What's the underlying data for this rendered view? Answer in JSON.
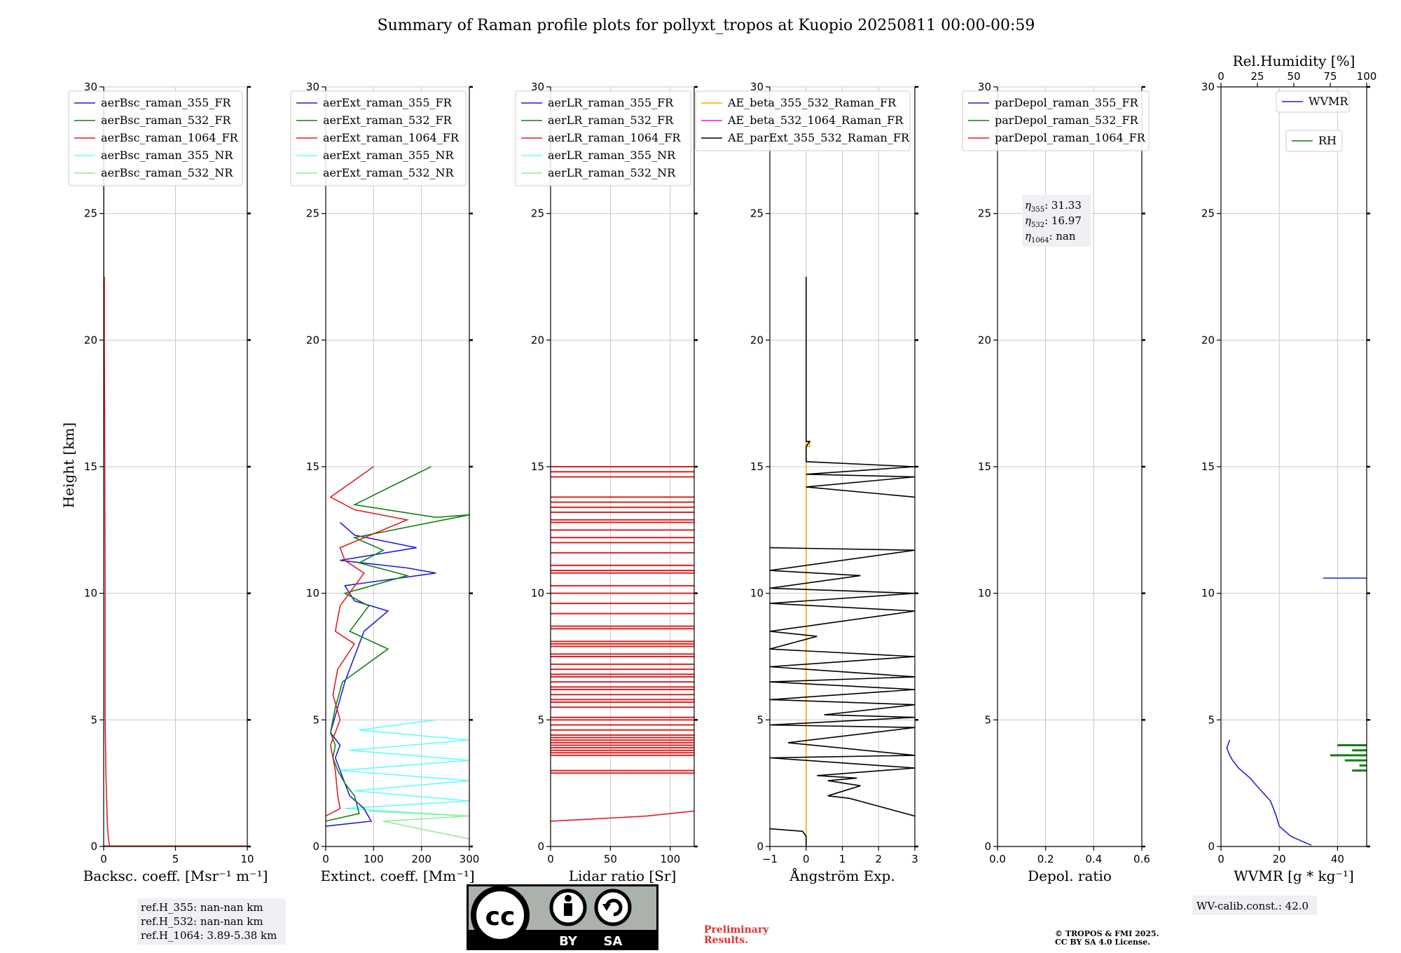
{
  "title": "Summary of Raman profile plots for pollyxt_tropos at Kuopio 20250811 00:00-00:59",
  "y_label": "Height [km]",
  "y_ticks": [
    "0",
    "5",
    "10",
    "15",
    "20",
    "25",
    "30"
  ],
  "chart_data": [
    {
      "type": "line",
      "id": "bsc",
      "xlabel": "Backsc. coeff. [Msr⁻¹ m⁻¹]",
      "xlim": [
        0,
        10
      ],
      "ylim": [
        0,
        30
      ],
      "xticks": [
        0,
        5,
        10
      ],
      "xtick_labels": [
        "0",
        "5",
        "10"
      ],
      "legend": [
        {
          "name": "aerBsc_raman_355_FR",
          "color": "#1f1fd6"
        },
        {
          "name": "aerBsc_raman_532_FR",
          "color": "#118011"
        },
        {
          "name": "aerBsc_raman_1064_FR",
          "color": "#e02020"
        },
        {
          "name": "aerBsc_raman_355_NR",
          "color": "#60ffff"
        },
        {
          "name": "aerBsc_raman_532_NR",
          "color": "#90ee90"
        }
      ],
      "series": [
        {
          "name": "aerBsc_raman_1064_FR",
          "color": "#e02020",
          "points": [
            [
              0.4,
              0.02
            ],
            [
              0.3,
              0.5
            ],
            [
              0.25,
              1.0
            ],
            [
              0.2,
              2.0
            ],
            [
              0.15,
              3.0
            ],
            [
              0.1,
              5.0
            ],
            [
              0.1,
              10.0
            ],
            [
              0.08,
              15.0
            ],
            [
              0.05,
              20.0
            ],
            [
              0.05,
              22.5
            ]
          ]
        },
        {
          "name": "baseline",
          "color": "#e02020",
          "points": [
            [
              0,
              0.02
            ],
            [
              10,
              0.02
            ]
          ]
        },
        {
          "name": "aerBsc_raman_355_FR",
          "color": "#b0b0b0",
          "points": [
            [
              0.02,
              22.5
            ],
            [
              0.02,
              30
            ]
          ]
        }
      ]
    },
    {
      "type": "line",
      "id": "ext",
      "xlabel": "Extinct. coeff. [Mm⁻¹]",
      "xlim": [
        0,
        300
      ],
      "ylim": [
        0,
        30
      ],
      "xticks": [
        0,
        100,
        200,
        300
      ],
      "xtick_labels": [
        "0",
        "100",
        "200",
        "300"
      ],
      "legend": [
        {
          "name": "aerExt_raman_355_FR",
          "color": "#1f1fd6"
        },
        {
          "name": "aerExt_raman_532_FR",
          "color": "#118011"
        },
        {
          "name": "aerExt_raman_1064_FR",
          "color": "#e02020"
        },
        {
          "name": "aerExt_raman_355_NR",
          "color": "#60ffff"
        },
        {
          "name": "aerExt_raman_532_NR",
          "color": "#90ee90"
        }
      ],
      "series": [
        {
          "name": "aerExt_raman_355_NR",
          "color": "#60ffff",
          "points": [
            [
              300,
              1.2
            ],
            [
              40,
              1.5
            ],
            [
              300,
              1.8
            ],
            [
              60,
              2.2
            ],
            [
              300,
              2.6
            ],
            [
              30,
              3.0
            ],
            [
              300,
              3.4
            ],
            [
              50,
              3.8
            ],
            [
              300,
              4.2
            ],
            [
              70,
              4.6
            ],
            [
              230,
              5.0
            ]
          ]
        },
        {
          "name": "aerExt_raman_532_NR",
          "color": "#90ee90",
          "points": [
            [
              300,
              0.3
            ],
            [
              120,
              1.0
            ],
            [
              300,
              1.2
            ],
            [
              90,
              1.4
            ]
          ]
        },
        {
          "name": "aerExt_raman_355_FR",
          "color": "#1f1fd6",
          "points": [
            [
              0,
              0.8
            ],
            [
              95,
              1.0
            ],
            [
              80,
              1.5
            ],
            [
              50,
              2.0
            ],
            [
              40,
              2.5
            ],
            [
              30,
              3.0
            ],
            [
              20,
              3.5
            ],
            [
              30,
              4.0
            ],
            [
              10,
              4.5
            ],
            [
              25,
              5.5
            ],
            [
              40,
              6.5
            ],
            [
              60,
              7.5
            ],
            [
              80,
              8.5
            ],
            [
              130,
              9.3
            ],
            [
              60,
              9.7
            ],
            [
              40,
              10.3
            ],
            [
              230,
              10.8
            ],
            [
              170,
              11.0
            ],
            [
              30,
              11.3
            ],
            [
              190,
              11.8
            ],
            [
              60,
              12.3
            ],
            [
              30,
              12.8
            ]
          ]
        },
        {
          "name": "aerExt_raman_532_FR",
          "color": "#118011",
          "points": [
            [
              0,
              1.0
            ],
            [
              70,
              1.3
            ],
            [
              60,
              2.0
            ],
            [
              40,
              2.5
            ],
            [
              25,
              3.0
            ],
            [
              15,
              3.5
            ],
            [
              20,
              4.0
            ],
            [
              10,
              4.5
            ],
            [
              20,
              5.5
            ],
            [
              35,
              6.5
            ],
            [
              130,
              7.8
            ],
            [
              50,
              8.5
            ],
            [
              90,
              9.5
            ],
            [
              40,
              10.0
            ],
            [
              170,
              10.7
            ],
            [
              70,
              11.2
            ],
            [
              120,
              11.7
            ],
            [
              60,
              12.2
            ],
            [
              300,
              13.1
            ],
            [
              230,
              13.0
            ],
            [
              60,
              13.5
            ],
            [
              220,
              15.0
            ]
          ]
        },
        {
          "name": "aerExt_raman_1064_FR",
          "color": "#e02020",
          "points": [
            [
              0,
              1.2
            ],
            [
              30,
              1.5
            ],
            [
              25,
              2.0
            ],
            [
              20,
              3.0
            ],
            [
              10,
              4.0
            ],
            [
              30,
              5.0
            ],
            [
              15,
              6.0
            ],
            [
              25,
              7.0
            ],
            [
              60,
              8.0
            ],
            [
              20,
              8.5
            ],
            [
              30,
              9.5
            ],
            [
              80,
              10.8
            ],
            [
              40,
              11.3
            ],
            [
              30,
              11.8
            ],
            [
              170,
              12.9
            ],
            [
              60,
              13.3
            ],
            [
              10,
              13.8
            ],
            [
              100,
              15.0
            ]
          ]
        }
      ]
    },
    {
      "type": "line",
      "id": "lr",
      "xlabel": "Lidar ratio [Sr]",
      "xlim": [
        0,
        120
      ],
      "ylim": [
        0,
        30
      ],
      "xticks": [
        0,
        50,
        100
      ],
      "xtick_labels": [
        "0",
        "50",
        "100"
      ],
      "legend": [
        {
          "name": "aerLR_raman_355_FR",
          "color": "#1f1fd6"
        },
        {
          "name": "aerLR_raman_532_FR",
          "color": "#118011"
        },
        {
          "name": "aerLR_raman_1064_FR",
          "color": "#e02020"
        },
        {
          "name": "aerLR_raman_355_NR",
          "color": "#60ffff"
        },
        {
          "name": "aerLR_raman_532_NR",
          "color": "#90ee90"
        }
      ],
      "series": [
        {
          "name": "aerLR_raman_1064_FR",
          "color": "#e02020",
          "points": [
            [
              0,
              1.0
            ],
            [
              40,
              1.1
            ],
            [
              80,
              1.2
            ],
            [
              120,
              1.4
            ]
          ]
        }
      ],
      "hlines_1064": [
        2.9,
        3.0,
        3.6,
        3.7,
        3.8,
        3.9,
        4.0,
        4.1,
        4.2,
        4.3,
        4.4,
        4.6,
        4.8,
        5.0,
        5.1,
        5.5,
        5.7,
        5.8,
        6.0,
        6.2,
        6.3,
        6.5,
        6.7,
        6.8,
        7.0,
        7.2,
        7.5,
        7.6,
        7.9,
        8.0,
        8.1,
        8.6,
        8.7,
        9.2,
        9.6,
        10.0,
        10.3,
        10.8,
        10.9,
        11.1,
        11.6,
        12.0,
        12.2,
        12.5,
        12.8,
        12.9,
        13.2,
        13.4,
        13.6,
        13.8,
        14.6,
        14.8,
        15.0
      ]
    },
    {
      "type": "line",
      "id": "ae",
      "xlabel": "Ångström Exp.",
      "xlim": [
        -1,
        3
      ],
      "ylim": [
        0,
        30
      ],
      "xticks": [
        -1,
        0,
        1,
        2,
        3
      ],
      "xtick_labels": [
        "−1",
        "0",
        "1",
        "2",
        "3"
      ],
      "legend": [
        {
          "name": "AE_beta_355_532_Raman_FR",
          "color": "#ffa500"
        },
        {
          "name": "AE_beta_532_1064_Raman_FR",
          "color": "#ff00ff"
        },
        {
          "name": "AE_parExt_355_532_Raman_FR",
          "color": "#000000"
        }
      ],
      "series": [
        {
          "name": "AE_beta_355_532_Raman_FR",
          "color": "#ffa500",
          "points": [
            [
              0,
              0
            ],
            [
              0,
              16.0
            ],
            [
              0.1,
              16.0
            ],
            [
              0.1,
              15.8
            ],
            [
              0,
              15.8
            ],
            [
              0,
              15.0
            ]
          ]
        },
        {
          "name": "AE_parExt_355_532_Raman_FR",
          "color": "#000000",
          "points": [
            [
              -1,
              0.7
            ],
            [
              -0.1,
              0.6
            ],
            [
              0,
              0.4
            ],
            [
              0,
              0
            ]
          ]
        },
        {
          "name": "AE_parExt_355_532_Raman_FR_upper",
          "color": "#000000",
          "points": [
            [
              0,
              22.5
            ],
            [
              0,
              16.0
            ],
            [
              0.1,
              16.0
            ],
            [
              0,
              15.8
            ],
            [
              0,
              15.2
            ],
            [
              3,
              15.0
            ],
            [
              0,
              14.7
            ],
            [
              3,
              14.6
            ],
            [
              0,
              14.2
            ],
            [
              3,
              13.8
            ]
          ]
        },
        {
          "name": "AE_parExt_355_532_Raman_FR_lower",
          "color": "#000000",
          "points": [
            [
              3,
              1.2
            ],
            [
              1.2,
              1.9
            ],
            [
              0.6,
              2.0
            ],
            [
              1.5,
              2.4
            ],
            [
              0.6,
              2.6
            ],
            [
              1.4,
              2.7
            ],
            [
              0.3,
              2.8
            ],
            [
              3,
              3.1
            ],
            [
              -1,
              3.5
            ],
            [
              3,
              3.6
            ],
            [
              -0.5,
              4.1
            ],
            [
              3,
              4.7
            ],
            [
              -1,
              4.8
            ],
            [
              3,
              5.1
            ],
            [
              0.5,
              5.2
            ],
            [
              3,
              5.6
            ],
            [
              -1,
              5.8
            ],
            [
              3,
              6.2
            ],
            [
              -1,
              6.5
            ],
            [
              3,
              6.7
            ],
            [
              -1,
              7.1
            ],
            [
              3,
              7.5
            ],
            [
              -1,
              7.8
            ],
            [
              0.3,
              8.3
            ],
            [
              -1,
              8.5
            ],
            [
              3,
              9.3
            ],
            [
              -1,
              9.6
            ],
            [
              0,
              9.7
            ],
            [
              3,
              10.0
            ],
            [
              -1,
              10.2
            ],
            [
              1.5,
              10.7
            ],
            [
              -1,
              10.9
            ],
            [
              3,
              11.7
            ],
            [
              -1,
              11.8
            ]
          ]
        }
      ]
    },
    {
      "type": "line",
      "id": "dep",
      "xlabel": "Depol. ratio",
      "xlim": [
        0.0,
        0.6
      ],
      "ylim": [
        0,
        30
      ],
      "xticks": [
        0.0,
        0.2,
        0.4,
        0.6
      ],
      "xtick_labels": [
        "0.0",
        "0.2",
        "0.4",
        "0.6"
      ],
      "legend": [
        {
          "name": "parDepol_raman_355_FR",
          "color": "#1f1fd6"
        },
        {
          "name": "parDepol_raman_532_FR",
          "color": "#118011"
        },
        {
          "name": "parDepol_raman_1064_FR",
          "color": "#e02020"
        }
      ],
      "annotation": [
        {
          "sub": "355",
          "text": ": 31.33"
        },
        {
          "sub": "532",
          "text": ": 16.97"
        },
        {
          "sub": "1064",
          "text": ": nan"
        }
      ],
      "series": []
    },
    {
      "type": "line",
      "id": "wv",
      "xlabel": "WVMR [g * kg⁻¹]",
      "xlim": [
        0,
        50
      ],
      "ylim": [
        0,
        30
      ],
      "xticks": [
        0,
        20,
        40
      ],
      "xtick_labels": [
        "0",
        "20",
        "40"
      ],
      "top_label": "Rel.Humidity [%]",
      "top_xlim": [
        0,
        100
      ],
      "top_xticks": [
        0,
        25,
        50,
        75,
        100
      ],
      "top_xtick_labels": [
        "0",
        "25",
        "50",
        "75",
        "100"
      ],
      "legend": [
        {
          "name": "WVMR",
          "color": "#1f1fd6"
        },
        {
          "name": "RH",
          "color": "#118011"
        }
      ],
      "series": [
        {
          "name": "WVMR",
          "color": "#1f1fd6",
          "points": [
            [
              31,
              0.05
            ],
            [
              28,
              0.2
            ],
            [
              24,
              0.4
            ],
            [
              20,
              0.8
            ],
            [
              19,
              1.2
            ],
            [
              17,
              1.8
            ],
            [
              13,
              2.3
            ],
            [
              10,
              2.7
            ],
            [
              6,
              3.1
            ],
            [
              4,
              3.4
            ],
            [
              3,
              3.6
            ],
            [
              2,
              3.9
            ],
            [
              3,
              4.2
            ]
          ]
        },
        {
          "name": "WVMR_upper",
          "color": "#1f1fd6",
          "points": [
            [
              35,
              10.6
            ],
            [
              50,
              10.6
            ]
          ]
        }
      ],
      "rh_bars": [
        [
          3.0,
          90
        ],
        [
          3.1,
          100
        ],
        [
          3.2,
          95
        ],
        [
          3.3,
          100
        ],
        [
          3.4,
          85
        ],
        [
          3.5,
          100
        ],
        [
          3.6,
          75
        ],
        [
          3.7,
          100
        ],
        [
          3.8,
          90
        ],
        [
          3.9,
          100
        ],
        [
          4.0,
          80
        ]
      ]
    }
  ],
  "refbox": {
    "l1": "ref.H_355: nan-nan km",
    "l2": "ref.H_532: nan-nan km",
    "l3": "ref.H_1064: 3.89-5.38 km"
  },
  "license_badge": {
    "by": "BY",
    "sa": "SA"
  },
  "preliminary": {
    "l1": "Preliminary",
    "l2": "Results."
  },
  "copyright": {
    "l1": "© TROPOS & FMI 2025.",
    "l2": "CC BY SA 4.0 License."
  },
  "wv_calib": "WV-calib.const.: 42.0"
}
